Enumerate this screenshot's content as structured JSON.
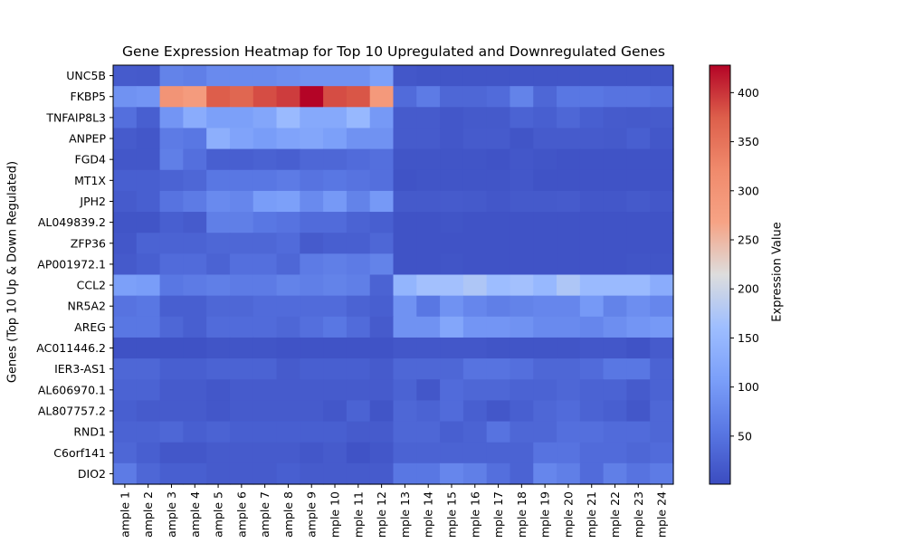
{
  "chart_data": {
    "type": "heatmap",
    "title": "Gene Expression Heatmap for Top 10 Upregulated and Downregulated Genes",
    "ylabel": "Genes (Top 10 Up & Down Regulated)",
    "colorbar_label": "Expression Value",
    "colormap": "coolwarm",
    "vmin": 1,
    "vmax": 428,
    "colorbar_ticks": [
      50,
      100,
      150,
      200,
      250,
      300,
      350,
      400
    ],
    "x_tick_labels": [
      "ample 1",
      "ample 2",
      "ample 3",
      "ample 4",
      "ample 5",
      "ample 6",
      "ample 7",
      "ample 8",
      "ample 9",
      "mple 10",
      "mple 11",
      "mple 12",
      "mple 13",
      "mple 14",
      "mple 15",
      "mple 16",
      "mple 17",
      "mple 18",
      "mple 19",
      "mple 20",
      "mple 21",
      "mple 22",
      "mple 23",
      "mple 24"
    ],
    "genes": [
      "UNC5B",
      "FKBP5",
      "TNFAIP8L3",
      "ANPEP",
      "FGD4",
      "MT1X",
      "JPH2",
      "AL049839.2",
      "ZFP36",
      "AP001972.1",
      "CCL2",
      "NR5A2",
      "AREG",
      "AC011446.2",
      "IER3-AS1",
      "AL606970.1",
      "AL807757.2",
      "RND1",
      "C6orf141",
      "DIO2"
    ],
    "values": [
      [
        20,
        18,
        70,
        65,
        80,
        80,
        80,
        85,
        90,
        90,
        90,
        110,
        15,
        12,
        12,
        12,
        12,
        12,
        12,
        12,
        12,
        12,
        12,
        12
      ],
      [
        90,
        95,
        300,
        285,
        375,
        365,
        385,
        395,
        428,
        385,
        380,
        290,
        40,
        60,
        35,
        35,
        40,
        70,
        35,
        55,
        55,
        50,
        50,
        45
      ],
      [
        45,
        25,
        95,
        130,
        110,
        110,
        120,
        155,
        125,
        125,
        150,
        100,
        20,
        20,
        15,
        18,
        18,
        30,
        25,
        35,
        25,
        20,
        18,
        20
      ],
      [
        20,
        15,
        60,
        55,
        135,
        115,
        105,
        115,
        120,
        110,
        90,
        90,
        20,
        20,
        15,
        20,
        20,
        12,
        20,
        20,
        20,
        18,
        25,
        15
      ],
      [
        15,
        15,
        65,
        45,
        25,
        25,
        28,
        25,
        35,
        35,
        40,
        45,
        12,
        12,
        12,
        12,
        10,
        15,
        12,
        10,
        10,
        10,
        10,
        10
      ],
      [
        25,
        25,
        30,
        35,
        55,
        55,
        55,
        60,
        50,
        55,
        50,
        45,
        10,
        12,
        12,
        12,
        12,
        15,
        10,
        10,
        10,
        10,
        10,
        10
      ],
      [
        20,
        25,
        50,
        60,
        80,
        75,
        105,
        110,
        80,
        100,
        70,
        100,
        18,
        18,
        20,
        18,
        15,
        18,
        18,
        20,
        15,
        15,
        18,
        15
      ],
      [
        12,
        12,
        25,
        20,
        65,
        65,
        55,
        50,
        40,
        40,
        30,
        25,
        10,
        10,
        12,
        10,
        10,
        10,
        10,
        10,
        10,
        10,
        10,
        10
      ],
      [
        15,
        30,
        30,
        30,
        35,
        35,
        35,
        40,
        20,
        25,
        25,
        35,
        10,
        10,
        10,
        10,
        10,
        10,
        10,
        10,
        10,
        10,
        10,
        10
      ],
      [
        18,
        25,
        40,
        40,
        30,
        45,
        45,
        35,
        60,
        65,
        60,
        70,
        10,
        10,
        12,
        10,
        10,
        10,
        10,
        10,
        10,
        10,
        12,
        12
      ],
      [
        110,
        105,
        55,
        60,
        65,
        60,
        60,
        70,
        65,
        70,
        65,
        30,
        145,
        165,
        165,
        175,
        160,
        165,
        150,
        175,
        155,
        155,
        155,
        130
      ],
      [
        50,
        55,
        25,
        25,
        35,
        35,
        40,
        40,
        40,
        40,
        30,
        25,
        90,
        55,
        90,
        75,
        65,
        70,
        75,
        75,
        100,
        70,
        85,
        75
      ],
      [
        55,
        55,
        35,
        25,
        40,
        40,
        40,
        35,
        45,
        55,
        40,
        20,
        90,
        90,
        120,
        95,
        95,
        90,
        80,
        80,
        75,
        85,
        95,
        100
      ],
      [
        8,
        8,
        8,
        8,
        12,
        12,
        12,
        10,
        10,
        10,
        10,
        10,
        15,
        15,
        15,
        15,
        12,
        12,
        12,
        12,
        15,
        15,
        10,
        20
      ],
      [
        35,
        35,
        25,
        25,
        30,
        30,
        30,
        20,
        25,
        25,
        25,
        20,
        35,
        35,
        35,
        50,
        50,
        45,
        35,
        35,
        40,
        55,
        55,
        30
      ],
      [
        30,
        30,
        20,
        20,
        15,
        20,
        20,
        20,
        20,
        20,
        20,
        20,
        30,
        15,
        40,
        35,
        35,
        30,
        30,
        35,
        30,
        30,
        20,
        30
      ],
      [
        25,
        20,
        20,
        20,
        15,
        20,
        20,
        20,
        20,
        15,
        30,
        12,
        35,
        30,
        40,
        25,
        15,
        25,
        35,
        40,
        30,
        25,
        15,
        35
      ],
      [
        30,
        30,
        35,
        25,
        30,
        25,
        25,
        25,
        25,
        25,
        20,
        20,
        35,
        35,
        25,
        30,
        50,
        35,
        35,
        45,
        45,
        40,
        40,
        35
      ],
      [
        35,
        25,
        15,
        15,
        20,
        20,
        20,
        20,
        15,
        20,
        10,
        15,
        30,
        30,
        30,
        30,
        30,
        30,
        50,
        50,
        40,
        40,
        35,
        40
      ],
      [
        60,
        35,
        25,
        25,
        20,
        20,
        20,
        25,
        20,
        20,
        20,
        20,
        55,
        55,
        75,
        65,
        45,
        30,
        75,
        65,
        40,
        65,
        50,
        60
      ]
    ]
  }
}
